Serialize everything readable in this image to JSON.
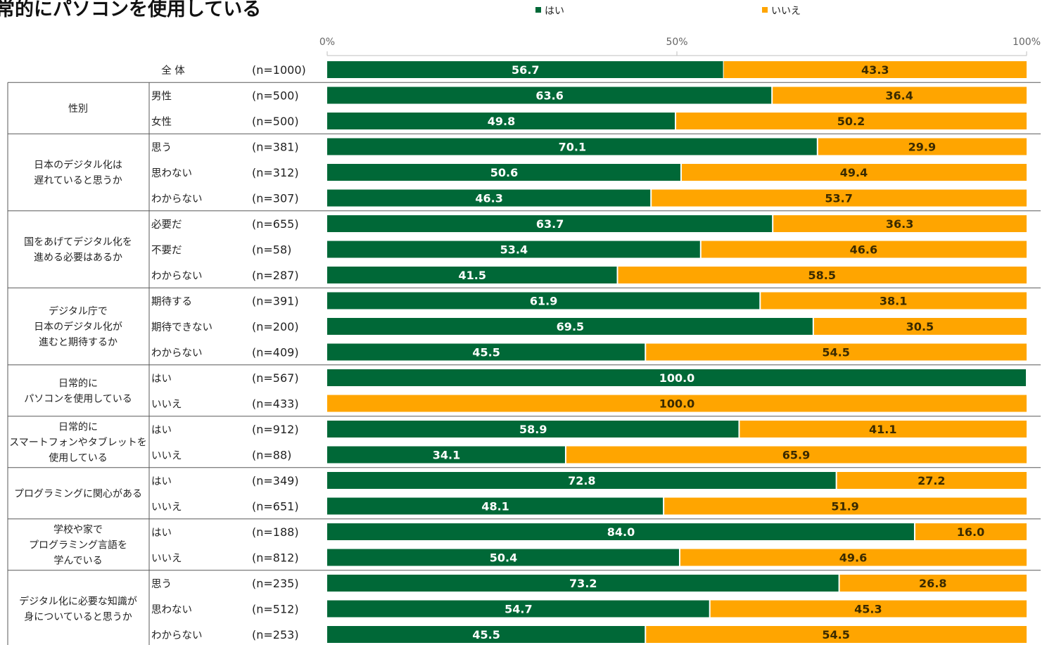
{
  "chart_data": {
    "type": "bar",
    "orientation": "horizontal",
    "stacked": "percent",
    "title": "常的にパソコンを使用している",
    "xlim": [
      0,
      100
    ],
    "x_ticks": [
      "0%",
      "50%",
      "100%"
    ],
    "legend": {
      "placement": "top",
      "entries": [
        {
          "name": "はい",
          "color": "#006837"
        },
        {
          "name": "いいえ",
          "color": "#FFA500"
        }
      ]
    },
    "overall": {
      "label": "全 体",
      "n": "(n=1000)",
      "yes": 56.7,
      "no": 43.3
    },
    "groups": [
      {
        "label": [
          "性別"
        ],
        "rows": [
          {
            "label": "男性",
            "n": "(n=500)",
            "yes": 63.6,
            "no": 36.4
          },
          {
            "label": "女性",
            "n": "(n=500)",
            "yes": 49.8,
            "no": 50.2
          }
        ]
      },
      {
        "label": [
          "日本のデジタル化は",
          "遅れていると思うか"
        ],
        "rows": [
          {
            "label": "思う",
            "n": "(n=381)",
            "yes": 70.1,
            "no": 29.9
          },
          {
            "label": "思わない",
            "n": "(n=312)",
            "yes": 50.6,
            "no": 49.4
          },
          {
            "label": "わからない",
            "n": "(n=307)",
            "yes": 46.3,
            "no": 53.7
          }
        ]
      },
      {
        "label": [
          "国をあげてデジタル化を",
          "進める必要はあるか"
        ],
        "rows": [
          {
            "label": "必要だ",
            "n": "(n=655)",
            "yes": 63.7,
            "no": 36.3
          },
          {
            "label": "不要だ",
            "n": "(n=58)",
            "yes": 53.4,
            "no": 46.6
          },
          {
            "label": "わからない",
            "n": "(n=287)",
            "yes": 41.5,
            "no": 58.5
          }
        ]
      },
      {
        "label": [
          "デジタル庁で",
          "日本のデジタル化が",
          "進むと期待するか"
        ],
        "rows": [
          {
            "label": "期待する",
            "n": "(n=391)",
            "yes": 61.9,
            "no": 38.1
          },
          {
            "label": "期待できない",
            "n": "(n=200)",
            "yes": 69.5,
            "no": 30.5
          },
          {
            "label": "わからない",
            "n": "(n=409)",
            "yes": 45.5,
            "no": 54.5
          }
        ]
      },
      {
        "label": [
          "日常的に",
          "パソコンを使用している"
        ],
        "rows": [
          {
            "label": "はい",
            "n": "(n=567)",
            "yes": 100.0,
            "no": 0
          },
          {
            "label": "いいえ",
            "n": "(n=433)",
            "yes": 0,
            "no": 100.0
          }
        ]
      },
      {
        "label": [
          "日常的に",
          "スマートフォンやタブレットを",
          "使用している"
        ],
        "rows": [
          {
            "label": "はい",
            "n": "(n=912)",
            "yes": 58.9,
            "no": 41.1
          },
          {
            "label": "いいえ",
            "n": "(n=88)",
            "yes": 34.1,
            "no": 65.9
          }
        ]
      },
      {
        "label": [
          "プログラミングに関心がある"
        ],
        "rows": [
          {
            "label": "はい",
            "n": "(n=349)",
            "yes": 72.8,
            "no": 27.2
          },
          {
            "label": "いいえ",
            "n": "(n=651)",
            "yes": 48.1,
            "no": 51.9
          }
        ]
      },
      {
        "label": [
          "学校や家で",
          "プログラミング言語を",
          "学んでいる"
        ],
        "rows": [
          {
            "label": "はい",
            "n": "(n=188)",
            "yes": 84.0,
            "no": 16.0
          },
          {
            "label": "いいえ",
            "n": "(n=812)",
            "yes": 50.4,
            "no": 49.6
          }
        ]
      },
      {
        "label": [
          "デジタル化に必要な知識が",
          "身についていると思うか"
        ],
        "rows": [
          {
            "label": "思う",
            "n": "(n=235)",
            "yes": 73.2,
            "no": 26.8
          },
          {
            "label": "思わない",
            "n": "(n=512)",
            "yes": 54.7,
            "no": 45.3
          },
          {
            "label": "わからない",
            "n": "(n=253)",
            "yes": 45.5,
            "no": 54.5
          }
        ]
      }
    ]
  }
}
